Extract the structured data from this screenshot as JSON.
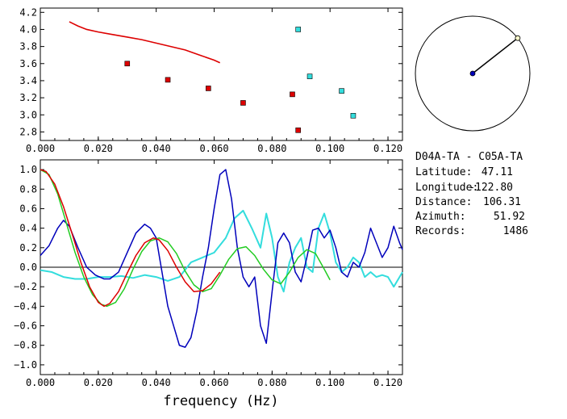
{
  "info": {
    "pair": "D04A-TA - C05A-TA",
    "latitude_label": "Latitude:",
    "latitude_value": "47.11",
    "longitude_label": "Longitude:",
    "longitude_value": "-122.80",
    "distance_label": "Distance:",
    "distance_value": "106.31",
    "azimuth_label": "Azimuth:",
    "azimuth_value": "51.92",
    "records_label": "Records:",
    "records_value": "1486"
  },
  "colors": {
    "red": "#dd0000",
    "blue": "#0000bb",
    "cyan": "#33dddd",
    "green": "#22cc22",
    "black": "#000000"
  },
  "chart_data": [
    {
      "type": "scatter",
      "xlim": [
        0.0,
        0.125
      ],
      "ylim": [
        2.7,
        4.25
      ],
      "xticks": [
        "0.000",
        "0.020",
        "0.040",
        "0.060",
        "0.080",
        "0.100",
        "0.120"
      ],
      "yticks": [
        "2.8",
        "3.0",
        "3.2",
        "3.4",
        "3.6",
        "3.8",
        "4.0",
        "4.2"
      ],
      "curve_red": {
        "x": [
          0.01,
          0.013,
          0.016,
          0.02,
          0.025,
          0.03,
          0.035,
          0.04,
          0.045,
          0.05,
          0.055,
          0.06,
          0.062
        ],
        "y": [
          4.09,
          4.04,
          4.0,
          3.97,
          3.94,
          3.91,
          3.88,
          3.84,
          3.8,
          3.76,
          3.7,
          3.64,
          3.61
        ]
      },
      "points_red": {
        "x": [
          0.03,
          0.044,
          0.058,
          0.07,
          0.087,
          0.089
        ],
        "y": [
          3.6,
          3.41,
          3.31,
          3.14,
          3.24,
          2.82
        ]
      },
      "points_cyan": {
        "x": [
          0.089,
          0.093,
          0.104,
          0.108
        ],
        "y": [
          4.0,
          3.45,
          3.28,
          2.99
        ]
      }
    },
    {
      "type": "line",
      "xlim": [
        0.0,
        0.125
      ],
      "ylim": [
        -1.1,
        1.1
      ],
      "xticks": [
        "0.000",
        "0.020",
        "0.040",
        "0.060",
        "0.080",
        "0.100",
        "0.120"
      ],
      "yticks": [
        "1.0",
        "0.8",
        "0.6",
        "0.4",
        "0.2",
        "0.0",
        "-0.2",
        "-0.4",
        "-0.6",
        "-0.8",
        "-1.0"
      ],
      "xlabel": "frequency (Hz)",
      "series_red": {
        "x": [
          0.0,
          0.002,
          0.005,
          0.008,
          0.011,
          0.014,
          0.017,
          0.02,
          0.022,
          0.024,
          0.027,
          0.03,
          0.033,
          0.036,
          0.039,
          0.041,
          0.044,
          0.047,
          0.05,
          0.053,
          0.056,
          0.059,
          0.062
        ],
        "y": [
          1.0,
          0.98,
          0.85,
          0.62,
          0.34,
          0.05,
          -0.2,
          -0.36,
          -0.4,
          -0.37,
          -0.25,
          -0.06,
          0.12,
          0.25,
          0.3,
          0.28,
          0.17,
          0.0,
          -0.15,
          -0.25,
          -0.24,
          -0.17,
          -0.05
        ]
      },
      "series_green": {
        "x": [
          0.0,
          0.003,
          0.006,
          0.009,
          0.012,
          0.015,
          0.018,
          0.021,
          0.023,
          0.026,
          0.029,
          0.032,
          0.035,
          0.038,
          0.041,
          0.044,
          0.047,
          0.05,
          0.053,
          0.056,
          0.059,
          0.062,
          0.065,
          0.068,
          0.071,
          0.074,
          0.077,
          0.08,
          0.083,
          0.086,
          0.089,
          0.092,
          0.095,
          0.098,
          0.1
        ],
        "y": [
          1.0,
          0.95,
          0.75,
          0.45,
          0.15,
          -0.1,
          -0.28,
          -0.38,
          -0.4,
          -0.36,
          -0.22,
          -0.02,
          0.16,
          0.27,
          0.3,
          0.26,
          0.14,
          -0.04,
          -0.18,
          -0.25,
          -0.22,
          -0.08,
          0.08,
          0.19,
          0.21,
          0.12,
          -0.02,
          -0.13,
          -0.17,
          -0.05,
          0.1,
          0.18,
          0.14,
          -0.02,
          -0.13
        ]
      },
      "series_blue": {
        "x": [
          0.0,
          0.003,
          0.006,
          0.008,
          0.01,
          0.013,
          0.016,
          0.019,
          0.022,
          0.024,
          0.027,
          0.03,
          0.033,
          0.036,
          0.038,
          0.04,
          0.042,
          0.044,
          0.046,
          0.048,
          0.05,
          0.052,
          0.054,
          0.056,
          0.058,
          0.06,
          0.062,
          0.064,
          0.066,
          0.068,
          0.07,
          0.072,
          0.074,
          0.076,
          0.078,
          0.08,
          0.082,
          0.084,
          0.086,
          0.088,
          0.09,
          0.092,
          0.094,
          0.096,
          0.098,
          0.1,
          0.102,
          0.104,
          0.106,
          0.108,
          0.11,
          0.112,
          0.114,
          0.116,
          0.118,
          0.12,
          0.122,
          0.124,
          0.125
        ],
        "y": [
          0.12,
          0.22,
          0.4,
          0.48,
          0.42,
          0.2,
          0.0,
          -0.08,
          -0.12,
          -0.12,
          -0.05,
          0.15,
          0.35,
          0.44,
          0.4,
          0.3,
          -0.05,
          -0.4,
          -0.6,
          -0.8,
          -0.82,
          -0.72,
          -0.45,
          -0.1,
          0.2,
          0.6,
          0.95,
          1.0,
          0.7,
          0.2,
          -0.1,
          -0.2,
          -0.1,
          -0.6,
          -0.78,
          -0.25,
          0.25,
          0.35,
          0.25,
          -0.05,
          -0.15,
          0.1,
          0.38,
          0.4,
          0.3,
          0.38,
          0.2,
          -0.05,
          -0.1,
          0.05,
          0.0,
          0.15,
          0.4,
          0.25,
          0.1,
          0.2,
          0.42,
          0.25,
          0.18
        ]
      },
      "series_cyan": {
        "x": [
          0.0,
          0.004,
          0.008,
          0.012,
          0.016,
          0.02,
          0.024,
          0.028,
          0.032,
          0.036,
          0.04,
          0.044,
          0.048,
          0.052,
          0.056,
          0.06,
          0.064,
          0.067,
          0.07,
          0.073,
          0.076,
          0.078,
          0.08,
          0.082,
          0.084,
          0.086,
          0.088,
          0.09,
          0.092,
          0.094,
          0.096,
          0.098,
          0.1,
          0.102,
          0.104,
          0.106,
          0.108,
          0.11,
          0.112,
          0.114,
          0.116,
          0.118,
          0.12,
          0.122,
          0.124,
          0.125
        ],
        "y": [
          -0.03,
          -0.05,
          -0.1,
          -0.12,
          -0.12,
          -0.1,
          -0.1,
          -0.09,
          -0.11,
          -0.08,
          -0.1,
          -0.14,
          -0.1,
          0.05,
          0.1,
          0.15,
          0.3,
          0.5,
          0.58,
          0.4,
          0.2,
          0.55,
          0.3,
          -0.1,
          -0.25,
          0.05,
          0.2,
          0.3,
          0.0,
          -0.05,
          0.4,
          0.55,
          0.35,
          0.05,
          -0.05,
          0.0,
          0.1,
          0.05,
          -0.1,
          -0.05,
          -0.1,
          -0.08,
          -0.1,
          -0.2,
          -0.1,
          -0.05
        ]
      }
    }
  ],
  "map": {
    "azimuth_deg": 51.92
  }
}
